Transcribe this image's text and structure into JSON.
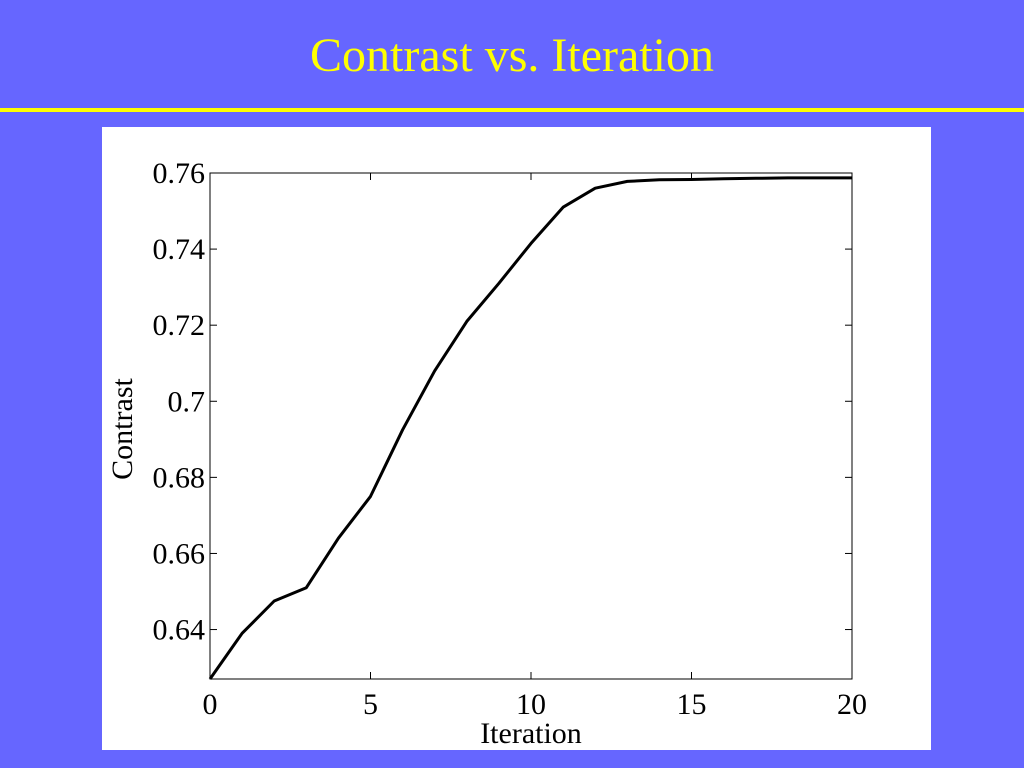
{
  "slide": {
    "title": "Contrast vs. Iteration",
    "background_color": "#6666ff",
    "accent_color": "#ffff00"
  },
  "chart_data": {
    "type": "line",
    "title": "",
    "xlabel": "Iteration",
    "ylabel": "Contrast",
    "xlim": [
      0,
      20
    ],
    "ylim": [
      0.627,
      0.76
    ],
    "x_ticks": [
      0,
      5,
      10,
      15,
      20
    ],
    "x_tick_labels": [
      "0",
      "5",
      "10",
      "15",
      "20"
    ],
    "y_ticks": [
      0.64,
      0.66,
      0.68,
      0.7,
      0.72,
      0.74,
      0.76
    ],
    "y_tick_labels": [
      "0.64",
      "0.66",
      "0.68",
      "0.7",
      "0.72",
      "0.74",
      "0.76"
    ],
    "grid": false,
    "legend": "none",
    "series": [
      {
        "color": "#000000",
        "x": [
          0,
          1,
          2,
          3,
          4,
          5,
          6,
          7,
          8,
          9,
          10,
          11,
          12,
          13,
          14,
          15,
          16,
          17,
          18,
          19,
          20
        ],
        "y": [
          0.627,
          0.639,
          0.6475,
          0.651,
          0.664,
          0.675,
          0.6925,
          0.708,
          0.721,
          0.731,
          0.7415,
          0.751,
          0.756,
          0.7578,
          0.7582,
          0.7583,
          0.7585,
          0.7586,
          0.7587,
          0.7587,
          0.7587
        ]
      }
    ]
  }
}
